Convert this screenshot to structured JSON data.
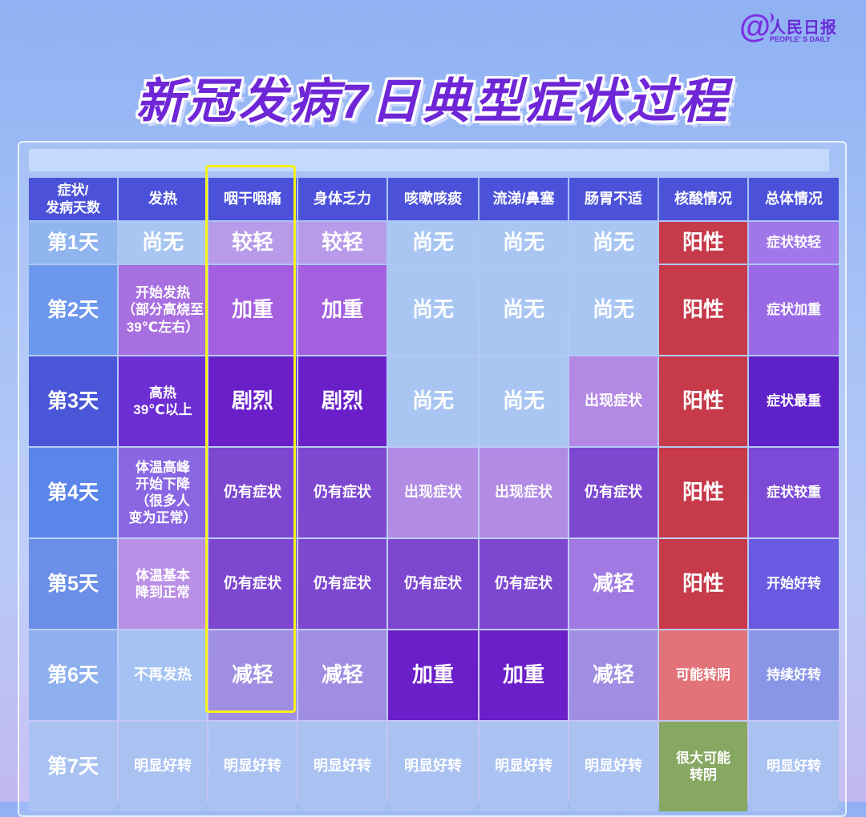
{
  "logo": {
    "at": "@",
    "name": "人民日报",
    "sub": "PEOPLE' S DAILY"
  },
  "title": "新冠发病7日典型症状过程",
  "headers": [
    "症状/\n发病天数",
    "发热",
    "咽干咽痛",
    "身体乏力",
    "咳嗽咳痰",
    "流涕/鼻塞",
    "肠胃不适",
    "核酸情况",
    "总体情况"
  ],
  "rows": [
    {
      "day": "第1天",
      "cells": [
        "尚无",
        "较轻",
        "较轻",
        "尚无",
        "尚无",
        "尚无",
        "阳性",
        "症状较轻"
      ]
    },
    {
      "day": "第2天",
      "cells": [
        "开始发热\n（部分高烧至\n39℃左右）",
        "加重",
        "加重",
        "尚无",
        "尚无",
        "尚无",
        "阳性",
        "症状加重"
      ]
    },
    {
      "day": "第3天",
      "cells": [
        "高热\n39℃以上",
        "剧烈",
        "剧烈",
        "尚无",
        "尚无",
        "出现症状",
        "阳性",
        "症状最重"
      ]
    },
    {
      "day": "第4天",
      "cells": [
        "体温高峰\n开始下降\n（很多人\n变为正常）",
        "仍有症状",
        "仍有症状",
        "出现症状",
        "出现症状",
        "仍有症状",
        "阳性",
        "症状较重"
      ]
    },
    {
      "day": "第5天",
      "cells": [
        "体温基本\n降到正常",
        "仍有症状",
        "仍有症状",
        "仍有症状",
        "仍有症状",
        "减轻",
        "阳性",
        "开始好转"
      ]
    },
    {
      "day": "第6天",
      "cells": [
        "不再发热",
        "减轻",
        "减轻",
        "加重",
        "加重",
        "减轻",
        "可能转阴",
        "持续好转"
      ]
    },
    {
      "day": "第7天",
      "cells": [
        "明显好转",
        "明显好转",
        "明显好转",
        "明显好转",
        "明显好转",
        "明显好转",
        "很大可能\n转阴",
        "明显好转"
      ]
    }
  ],
  "colors": {
    "header": "#4b52d9",
    "days": [
      "#8fb4ee",
      "#6c97ec",
      "#4a56d8",
      "#5a86ea",
      "#6b8fe8",
      "#8fb0ee",
      "#a9c2f2"
    ],
    "cells": [
      [
        "#a9c6f3",
        "#b79be8",
        "#b79be8",
        "#a9c6f3",
        "#a9c6f3",
        "#a9c6f3",
        "#c63a4a",
        "#a077e8"
      ],
      [
        "#a76fe0",
        "#a45fdf",
        "#a45fdf",
        "#a9c6f3",
        "#a9c6f3",
        "#a9c6f3",
        "#c63a4a",
        "#9a6ae6"
      ],
      [
        "#6d2ed4",
        "#6a1fc8",
        "#6a1fc8",
        "#a9c6f3",
        "#a9c6f3",
        "#b489e4",
        "#c63a4a",
        "#5f22c9"
      ],
      [
        "#8a66e2",
        "#7d47d0",
        "#7d47d0",
        "#b18be4",
        "#b18be4",
        "#7d47d0",
        "#c63a4a",
        "#7c4ad6"
      ],
      [
        "#ba8fe6",
        "#7d47d0",
        "#7d47d0",
        "#7d47d0",
        "#7d47d0",
        "#a07ae2",
        "#c63a4a",
        "#6a5ae2"
      ],
      [
        "#a4c2f3",
        "#a08ee2",
        "#a08ee2",
        "#6a1fc8",
        "#6a1fc8",
        "#a08ee2",
        "#e17379",
        "#8996e8"
      ],
      [
        "#a9c2f2",
        "#a9c2f2",
        "#a9c2f2",
        "#a9c2f2",
        "#a9c2f2",
        "#a9c2f2",
        "#86a862",
        "#a9c2f2"
      ]
    ]
  }
}
